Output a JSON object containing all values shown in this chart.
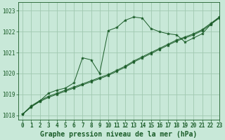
{
  "title": "Graphe pression niveau de la mer (hPa)",
  "bg_color": "#c8e8d8",
  "grid_color": "#a0c8b0",
  "line_color": "#1a5c28",
  "xlim": [
    -0.5,
    23
  ],
  "ylim": [
    1017.8,
    1023.4
  ],
  "yticks": [
    1018,
    1019,
    1020,
    1021,
    1022,
    1023
  ],
  "xticks": [
    0,
    1,
    2,
    3,
    4,
    5,
    6,
    7,
    8,
    9,
    10,
    11,
    12,
    13,
    14,
    15,
    16,
    17,
    18,
    19,
    20,
    21,
    22,
    23
  ],
  "series1_x": [
    0,
    1,
    2,
    3,
    4,
    5,
    6,
    7,
    8,
    9,
    10,
    11,
    12,
    13,
    14,
    15,
    16,
    17,
    18,
    19,
    20,
    21,
    22,
    23
  ],
  "series1_y": [
    1018.05,
    1018.4,
    1018.65,
    1018.85,
    1019.0,
    1019.15,
    1019.3,
    1019.45,
    1019.6,
    1019.75,
    1019.9,
    1020.1,
    1020.3,
    1020.55,
    1020.75,
    1020.95,
    1021.15,
    1021.35,
    1021.55,
    1021.7,
    1021.85,
    1022.05,
    1022.35,
    1022.65
  ],
  "series2_x": [
    0,
    1,
    2,
    3,
    4,
    5,
    6,
    7,
    8,
    9,
    10,
    11,
    12,
    13,
    14,
    15,
    16,
    17,
    18,
    19,
    20,
    21,
    22,
    23
  ],
  "series2_y": [
    1018.05,
    1018.45,
    1018.7,
    1018.9,
    1019.05,
    1019.2,
    1019.35,
    1019.5,
    1019.65,
    1019.8,
    1019.95,
    1020.15,
    1020.35,
    1020.6,
    1020.8,
    1021.0,
    1021.2,
    1021.4,
    1021.6,
    1021.75,
    1021.9,
    1022.1,
    1022.4,
    1022.7
  ],
  "series3_x": [
    0,
    1,
    2,
    3,
    4,
    5,
    6,
    7,
    8,
    9,
    10,
    11,
    12,
    13,
    14,
    15,
    16,
    17,
    18,
    19,
    20,
    21,
    22,
    23
  ],
  "series3_y": [
    1018.05,
    1018.4,
    1018.68,
    1019.05,
    1019.2,
    1019.3,
    1019.55,
    1020.75,
    1020.65,
    1020.0,
    1022.05,
    1022.2,
    1022.55,
    1022.7,
    1022.65,
    1022.15,
    1022.0,
    1021.9,
    1021.85,
    1021.5,
    1021.7,
    1021.9,
    1022.35,
    1022.7
  ],
  "title_fontsize": 7,
  "tick_fontsize": 5.5
}
